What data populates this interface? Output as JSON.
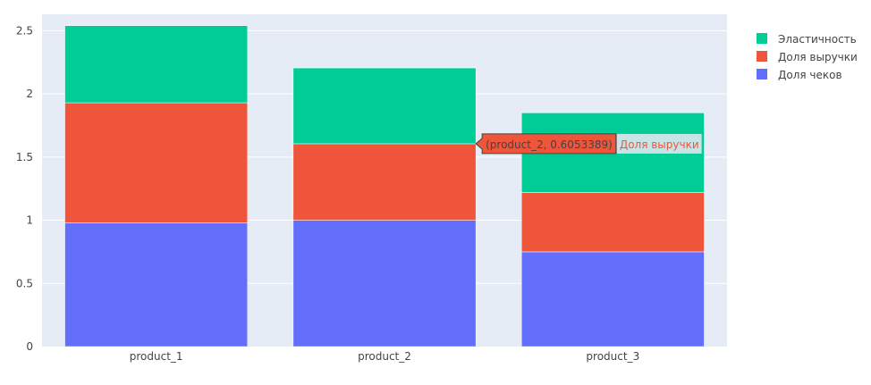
{
  "chart_data": {
    "type": "bar",
    "barmode": "stack",
    "categories": [
      "product_1",
      "product_2",
      "product_3"
    ],
    "series": [
      {
        "name": "Доля чеков",
        "color": "#636efa",
        "values": [
          0.98,
          1.0,
          0.75
        ]
      },
      {
        "name": "Доля выручки",
        "color": "#ef553b",
        "values": [
          0.95,
          0.6053389,
          0.47
        ]
      },
      {
        "name": "Эластичность",
        "color": "#00cc96",
        "values": [
          0.61,
          0.6,
          0.63
        ]
      }
    ],
    "ylim": [
      0,
      2.63
    ],
    "yticks": [
      0,
      0.5,
      1,
      1.5,
      2,
      2.5
    ],
    "ytick_labels": [
      "0",
      "0.5",
      "1",
      "1.5",
      "2",
      "2.5"
    ],
    "grid": true,
    "legend_position": "top-right",
    "legend_order": [
      "Эластичность",
      "Доля выручки",
      "Доля чеков"
    ],
    "plot_background": "#e5ecf6",
    "hover": {
      "category": "product_2",
      "series": "Доля выручки",
      "text": "(product_2, 0.6053389)",
      "series_label": "Доля выручки",
      "box_color": "#ef553b"
    }
  }
}
